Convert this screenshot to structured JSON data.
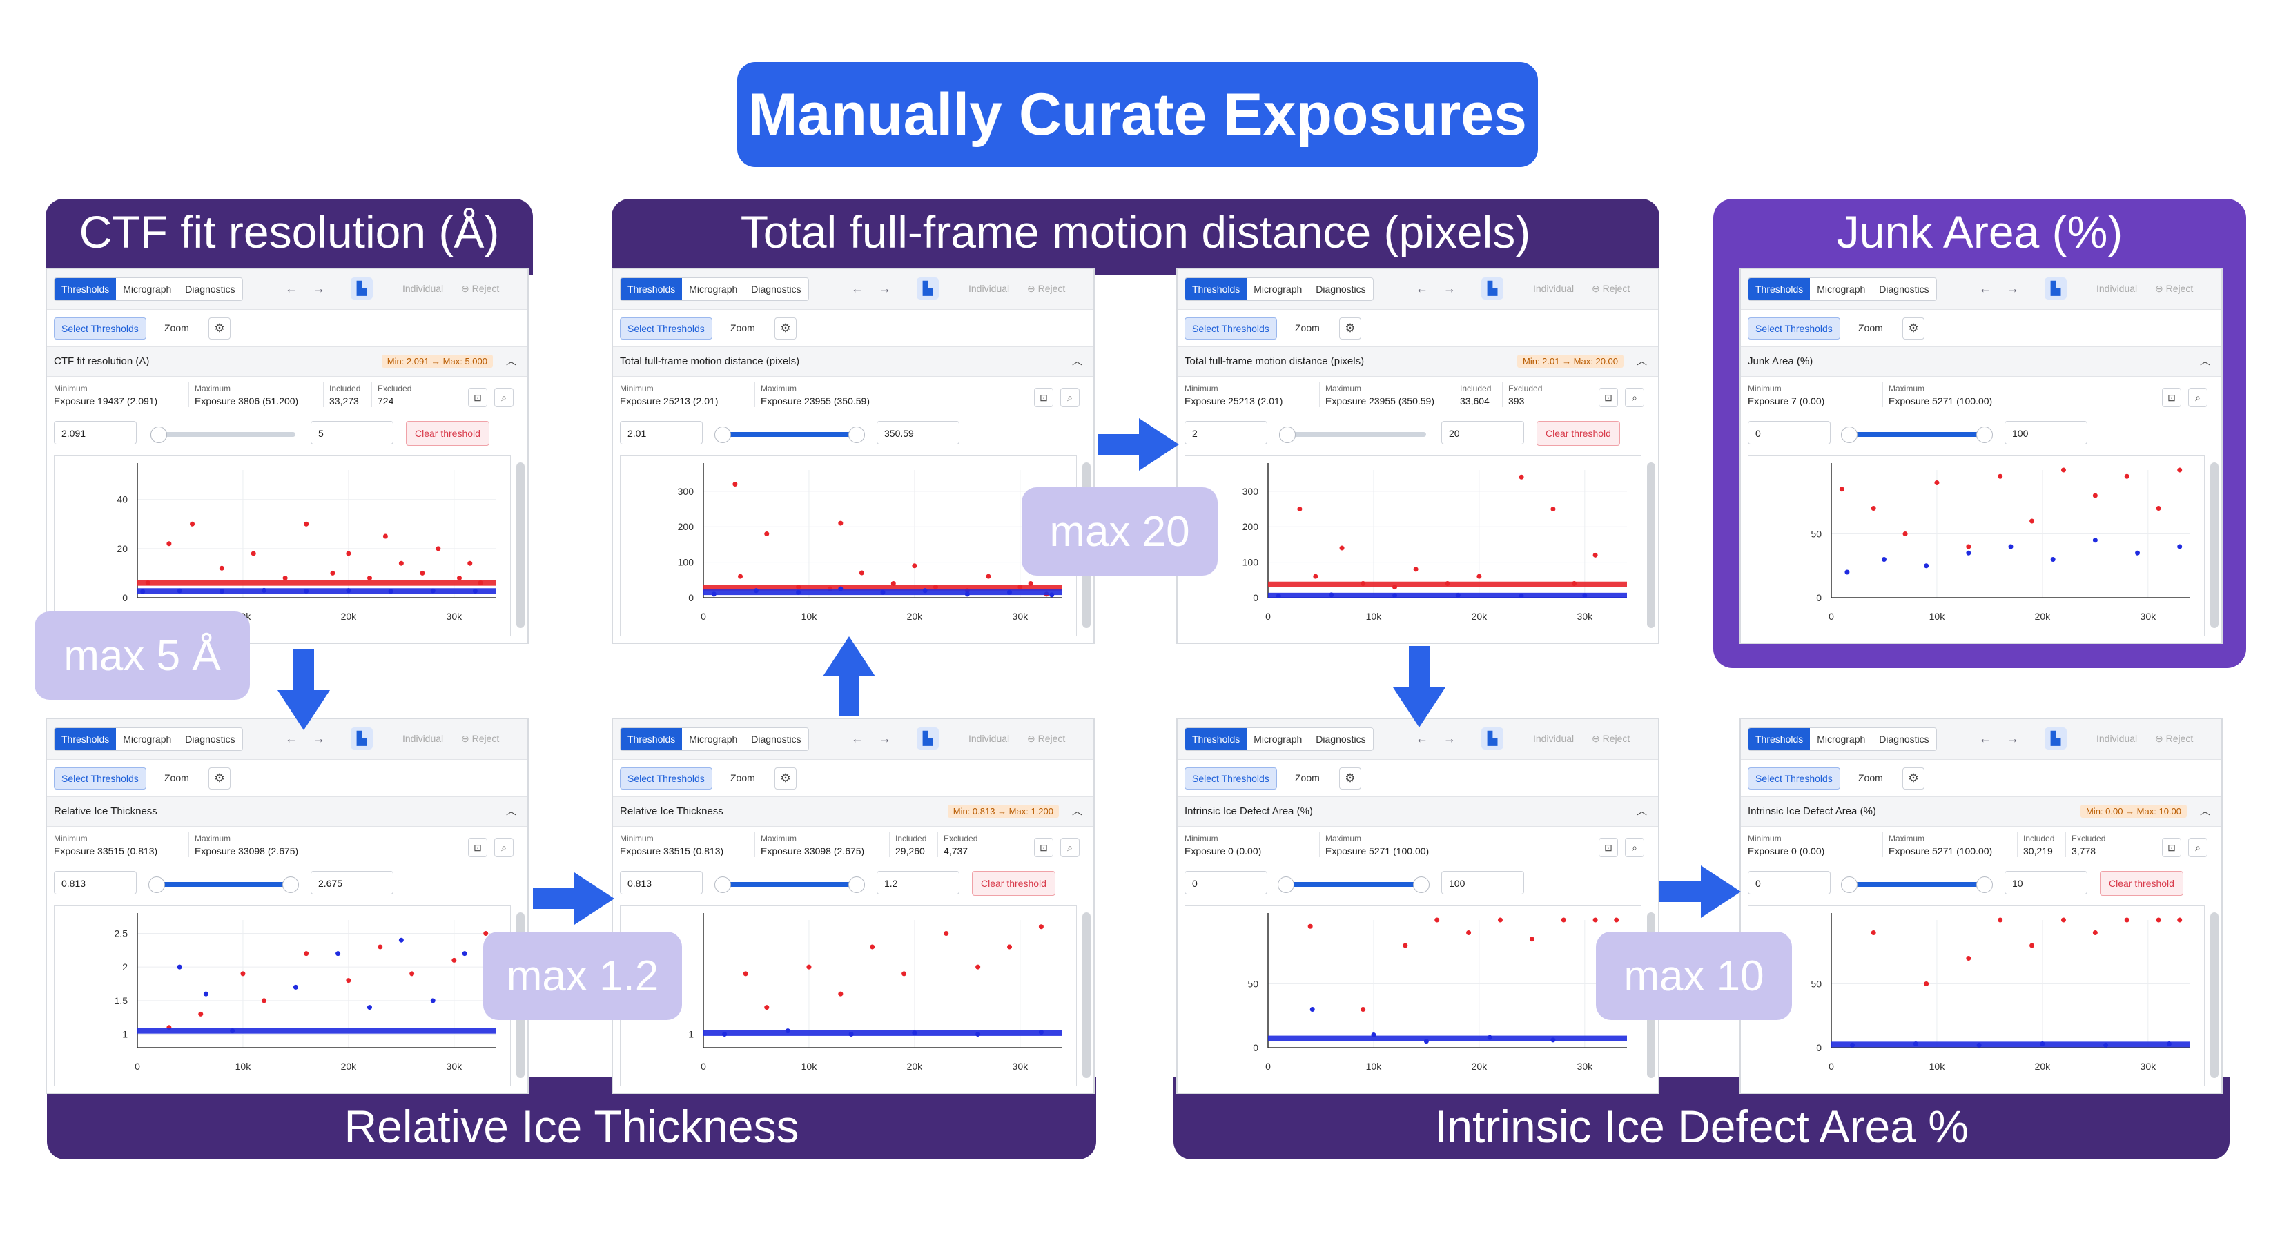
{
  "title": "Manually Curate Exposures",
  "banners": {
    "ctf": "CTF fit resolution (Å)",
    "motion": "Total full-frame motion distance (pixels)",
    "junk": "Junk Area (%)",
    "ice": "Relative Ice Thickness",
    "defect": "Intrinsic Ice Defect Area %"
  },
  "callouts": {
    "ctf": "max 5 Å",
    "motion": "max 20",
    "ice": "max 1.2",
    "defect": "max 10"
  },
  "ui": {
    "tab_thresholds": "Thresholds",
    "tab_micrograph": "Micrograph",
    "tab_diagnostics": "Diagnostics",
    "individual": "Individual",
    "reject": "Reject",
    "select_thresholds": "Select Thresholds",
    "zoom": "Zoom",
    "label_minimum": "Minimum",
    "label_maximum": "Maximum",
    "label_included": "Included",
    "label_excluded": "Excluded",
    "clear_threshold": "Clear threshold",
    "colors": {
      "accent": "#1d5fd9",
      "rejected": "#e8232a",
      "accepted": "#1f2be0",
      "banner": "#452a78",
      "title": "#2a62e8",
      "junk_frame": "#6a3fbe",
      "callout": "#c9c4ef"
    },
    "icons": {
      "back": "arrow-left-icon",
      "forward": "arrow-right-icon",
      "gear": "gear-icon",
      "chevron": "chevron-up-icon",
      "zoom_fit": "zoom-fit-icon",
      "zoom": "magnifier-icon",
      "reject": "reject-icon",
      "logo": "app-logo-icon"
    }
  },
  "panels": [
    {
      "id": "ctf",
      "header": "CTF fit resolution (A)",
      "badge": "Min: 2.091 → Max: 5.000",
      "minimum": "Exposure 19437 (2.091)",
      "maximum": "Exposure 3806 (51.200)",
      "included": "33,273",
      "excluded": "724",
      "input_min": "2.091",
      "input_max": "5",
      "clear": true,
      "slider": {
        "lo": 0.05,
        "hi": 0.05,
        "filled": false
      }
    },
    {
      "id": "motion-pre",
      "header": "Total full-frame motion distance (pixels)",
      "badge": "",
      "minimum": "Exposure 25213 (2.01)",
      "maximum": "Exposure 23955 (350.59)",
      "included": "",
      "excluded": "",
      "input_min": "2.01",
      "input_max": "350.59",
      "clear": false,
      "slider": {
        "lo": 0.04,
        "hi": 0.96,
        "filled": true
      }
    },
    {
      "id": "motion",
      "header": "Total full-frame motion distance (pixels)",
      "badge": "Min: 2.01 → Max: 20.00",
      "minimum": "Exposure 25213 (2.01)",
      "maximum": "Exposure 23955 (350.59)",
      "included": "33,604",
      "excluded": "393",
      "input_min": "2",
      "input_max": "20",
      "clear": true,
      "slider": {
        "lo": 0.04,
        "hi": 0.04,
        "filled": false
      }
    },
    {
      "id": "junk",
      "header": "Junk Area (%)",
      "badge": "",
      "minimum": "Exposure 7 (0.00)",
      "maximum": "Exposure 5271 (100.00)",
      "included": "",
      "excluded": "",
      "input_min": "0",
      "input_max": "100",
      "clear": false,
      "slider": {
        "lo": 0.03,
        "hi": 0.96,
        "filled": true
      }
    },
    {
      "id": "ice-pre",
      "header": "Relative Ice Thickness",
      "badge": "",
      "minimum": "Exposure 33515 (0.813)",
      "maximum": "Exposure 33098 (2.675)",
      "included": "",
      "excluded": "",
      "input_min": "0.813",
      "input_max": "2.675",
      "clear": false,
      "slider": {
        "lo": 0.04,
        "hi": 0.96,
        "filled": true
      }
    },
    {
      "id": "ice",
      "header": "Relative Ice Thickness",
      "badge": "Min: 0.813 → Max: 1.200",
      "minimum": "Exposure 33515 (0.813)",
      "maximum": "Exposure 33098 (2.675)",
      "included": "29,260",
      "excluded": "4,737",
      "input_min": "0.813",
      "input_max": "1.2",
      "clear": true,
      "slider": {
        "lo": 0.04,
        "hi": 0.96,
        "filled": true
      }
    },
    {
      "id": "defect-pre",
      "header": "Intrinsic Ice Defect Area (%)",
      "badge": "",
      "minimum": "Exposure 0 (0.00)",
      "maximum": "Exposure 5271 (100.00)",
      "included": "",
      "excluded": "",
      "input_min": "0",
      "input_max": "100",
      "clear": false,
      "slider": {
        "lo": 0.03,
        "hi": 0.96,
        "filled": true
      }
    },
    {
      "id": "defect",
      "header": "Intrinsic Ice Defect Area (%)",
      "badge": "Min: 0.00 → Max: 10.00",
      "minimum": "Exposure 0 (0.00)",
      "maximum": "Exposure 5271 (100.00)",
      "included": "30,219",
      "excluded": "3,778",
      "input_min": "0",
      "input_max": "10",
      "clear": true,
      "slider": {
        "lo": 0.03,
        "hi": 0.96,
        "filled": true
      }
    }
  ],
  "chart_data": [
    {
      "type": "scatter",
      "panel": "ctf",
      "xlabel": "",
      "ylabel": "",
      "xticks": [
        "10k",
        "20k",
        "30k"
      ],
      "yticks": [
        "0",
        "20",
        "40"
      ],
      "xlim": [
        0,
        34000
      ],
      "ylim": [
        0,
        52
      ],
      "series": [
        {
          "color": "#e8232a",
          "values": [
            [
              1000,
              6
            ],
            [
              3000,
              22
            ],
            [
              5200,
              30
            ],
            [
              8000,
              12
            ],
            [
              11000,
              18
            ],
            [
              14000,
              8
            ],
            [
              16000,
              30
            ],
            [
              18500,
              10
            ],
            [
              20000,
              18
            ],
            [
              22000,
              8
            ],
            [
              23500,
              25
            ],
            [
              25000,
              14
            ],
            [
              27000,
              10
            ],
            [
              28500,
              20
            ],
            [
              30500,
              8
            ],
            [
              31500,
              14
            ],
            [
              32500,
              6
            ]
          ]
        },
        {
          "color": "#1f2be0",
          "values": [
            [
              500,
              2.5
            ],
            [
              4000,
              2.8
            ],
            [
              8000,
              2.6
            ],
            [
              12000,
              3
            ],
            [
              16000,
              2.7
            ],
            [
              20000,
              2.9
            ],
            [
              24000,
              2.6
            ],
            [
              28000,
              2.8
            ],
            [
              32000,
              2.7
            ]
          ]
        }
      ]
    },
    {
      "type": "scatter",
      "panel": "motion-pre",
      "xlabel": "",
      "ylabel": "",
      "xticks": [
        "0",
        "10k",
        "20k",
        "30k"
      ],
      "yticks": [
        "0",
        "100",
        "200",
        "300"
      ],
      "xlim": [
        0,
        34000
      ],
      "ylim": [
        0,
        360
      ],
      "series": [
        {
          "color": "#e8232a",
          "values": [
            [
              3000,
              320
            ],
            [
              3500,
              60
            ],
            [
              6000,
              180
            ],
            [
              9000,
              30
            ],
            [
              12000,
              25
            ],
            [
              13000,
              210
            ],
            [
              15000,
              70
            ],
            [
              18000,
              40
            ],
            [
              20000,
              90
            ],
            [
              22000,
              30
            ],
            [
              25000,
              20
            ],
            [
              27000,
              60
            ],
            [
              30000,
              30
            ],
            [
              31000,
              40
            ],
            [
              32500,
              10
            ]
          ]
        },
        {
          "color": "#1f2be0",
          "values": [
            [
              1000,
              10
            ],
            [
              5000,
              20
            ],
            [
              9000,
              15
            ],
            [
              13000,
              25
            ],
            [
              17000,
              15
            ],
            [
              21000,
              20
            ],
            [
              25000,
              10
            ],
            [
              29000,
              15
            ],
            [
              33000,
              8
            ]
          ]
        }
      ]
    },
    {
      "type": "scatter",
      "panel": "motion",
      "xlabel": "",
      "ylabel": "",
      "xticks": [
        "0",
        "10k",
        "20k",
        "30k"
      ],
      "yticks": [
        "0",
        "100",
        "200",
        "300"
      ],
      "xlim": [
        0,
        34000
      ],
      "ylim": [
        0,
        360
      ],
      "series": [
        {
          "color": "#e8232a",
          "values": [
            [
              3000,
              250
            ],
            [
              4500,
              60
            ],
            [
              7000,
              140
            ],
            [
              9000,
              40
            ],
            [
              12000,
              30
            ],
            [
              14000,
              80
            ],
            [
              17000,
              40
            ],
            [
              20000,
              60
            ],
            [
              24000,
              340
            ],
            [
              27000,
              250
            ],
            [
              29000,
              40
            ],
            [
              31000,
              120
            ]
          ]
        },
        {
          "color": "#1f2be0",
          "values": [
            [
              1000,
              5
            ],
            [
              6000,
              8
            ],
            [
              12000,
              6
            ],
            [
              18000,
              7
            ],
            [
              24000,
              5
            ],
            [
              30000,
              6
            ]
          ]
        }
      ]
    },
    {
      "type": "scatter",
      "panel": "junk",
      "xlabel": "",
      "ylabel": "",
      "xticks": [
        "0",
        "10k",
        "20k",
        "30k"
      ],
      "yticks": [
        "0",
        "50"
      ],
      "xlim": [
        0,
        34000
      ],
      "ylim": [
        0,
        100
      ],
      "series": [
        {
          "color": "#e8232a",
          "values": [
            [
              1000,
              85
            ],
            [
              4000,
              70
            ],
            [
              7000,
              50
            ],
            [
              10000,
              90
            ],
            [
              13000,
              40
            ],
            [
              16000,
              95
            ],
            [
              19000,
              60
            ],
            [
              22000,
              100
            ],
            [
              25000,
              80
            ],
            [
              28000,
              95
            ],
            [
              31000,
              70
            ],
            [
              33000,
              100
            ]
          ]
        },
        {
          "color": "#1f2be0",
          "values": [
            [
              1500,
              20
            ],
            [
              5000,
              30
            ],
            [
              9000,
              25
            ],
            [
              13000,
              35
            ],
            [
              17000,
              40
            ],
            [
              21000,
              30
            ],
            [
              25000,
              45
            ],
            [
              29000,
              35
            ],
            [
              33000,
              40
            ]
          ]
        }
      ]
    },
    {
      "type": "scatter",
      "panel": "ice-pre",
      "xlabel": "",
      "ylabel": "",
      "xticks": [
        "0",
        "10k",
        "20k",
        "30k"
      ],
      "yticks": [
        "1",
        "1.5",
        "2",
        "2.5"
      ],
      "xlim": [
        0,
        34000
      ],
      "ylim": [
        0.8,
        2.7
      ],
      "series": [
        {
          "color": "#e8232a",
          "values": [
            [
              3000,
              1.1
            ],
            [
              6000,
              1.3
            ],
            [
              10000,
              1.9
            ],
            [
              12000,
              1.5
            ],
            [
              16000,
              2.2
            ],
            [
              20000,
              1.8
            ],
            [
              23000,
              2.3
            ],
            [
              26000,
              1.9
            ],
            [
              30000,
              2.1
            ],
            [
              33000,
              2.5
            ]
          ]
        },
        {
          "color": "#1f2be0",
          "values": [
            [
              4000,
              2.0
            ],
            [
              6500,
              1.6
            ],
            [
              9000,
              1.05
            ],
            [
              15000,
              1.7
            ],
            [
              19000,
              2.2
            ],
            [
              22000,
              1.4
            ],
            [
              25000,
              2.4
            ],
            [
              28000,
              1.5
            ],
            [
              31000,
              2.2
            ]
          ]
        }
      ]
    },
    {
      "type": "scatter",
      "panel": "ice",
      "xlabel": "",
      "ylabel": "",
      "xticks": [
        "0",
        "10k",
        "20k",
        "30k"
      ],
      "yticks": [
        "1"
      ],
      "xlim": [
        0,
        34000
      ],
      "ylim": [
        0.8,
        2.7
      ],
      "series": [
        {
          "color": "#e8232a",
          "values": [
            [
              4000,
              1.9
            ],
            [
              6000,
              1.4
            ],
            [
              10000,
              2.0
            ],
            [
              13000,
              1.6
            ],
            [
              16000,
              2.3
            ],
            [
              19000,
              1.9
            ],
            [
              23000,
              2.5
            ],
            [
              26000,
              2.0
            ],
            [
              29000,
              2.3
            ],
            [
              32000,
              2.6
            ]
          ]
        },
        {
          "color": "#1f2be0",
          "values": [
            [
              2000,
              1.0
            ],
            [
              8000,
              1.05
            ],
            [
              14000,
              1.0
            ],
            [
              20000,
              1.02
            ],
            [
              26000,
              1.0
            ],
            [
              32000,
              1.03
            ]
          ]
        }
      ]
    },
    {
      "type": "scatter",
      "panel": "defect-pre",
      "xlabel": "",
      "ylabel": "",
      "xticks": [
        "0",
        "10k",
        "20k",
        "30k"
      ],
      "yticks": [
        "0",
        "50"
      ],
      "xlim": [
        0,
        34000
      ],
      "ylim": [
        0,
        100
      ],
      "series": [
        {
          "color": "#e8232a",
          "values": [
            [
              4000,
              95
            ],
            [
              9000,
              30
            ],
            [
              13000,
              80
            ],
            [
              16000,
              100
            ],
            [
              19000,
              90
            ],
            [
              22000,
              100
            ],
            [
              25000,
              85
            ],
            [
              28000,
              100
            ],
            [
              31000,
              100
            ],
            [
              33000,
              100
            ]
          ]
        },
        {
          "color": "#1f2be0",
          "values": [
            [
              4200,
              30
            ],
            [
              10000,
              10
            ],
            [
              15000,
              5
            ],
            [
              21000,
              8
            ],
            [
              27000,
              6
            ]
          ]
        }
      ]
    },
    {
      "type": "scatter",
      "panel": "defect",
      "xlabel": "",
      "ylabel": "",
      "xticks": [
        "0",
        "10k",
        "20k",
        "30k"
      ],
      "yticks": [
        "0",
        "50"
      ],
      "xlim": [
        0,
        34000
      ],
      "ylim": [
        0,
        100
      ],
      "series": [
        {
          "color": "#e8232a",
          "values": [
            [
              4000,
              90
            ],
            [
              9000,
              50
            ],
            [
              13000,
              70
            ],
            [
              16000,
              100
            ],
            [
              19000,
              80
            ],
            [
              22000,
              100
            ],
            [
              25000,
              90
            ],
            [
              28000,
              100
            ],
            [
              31000,
              100
            ],
            [
              33000,
              100
            ]
          ]
        },
        {
          "color": "#1f2be0",
          "values": [
            [
              2000,
              2
            ],
            [
              8000,
              3
            ],
            [
              14000,
              2
            ],
            [
              20000,
              3
            ],
            [
              26000,
              2
            ],
            [
              32000,
              3
            ]
          ]
        }
      ]
    }
  ]
}
